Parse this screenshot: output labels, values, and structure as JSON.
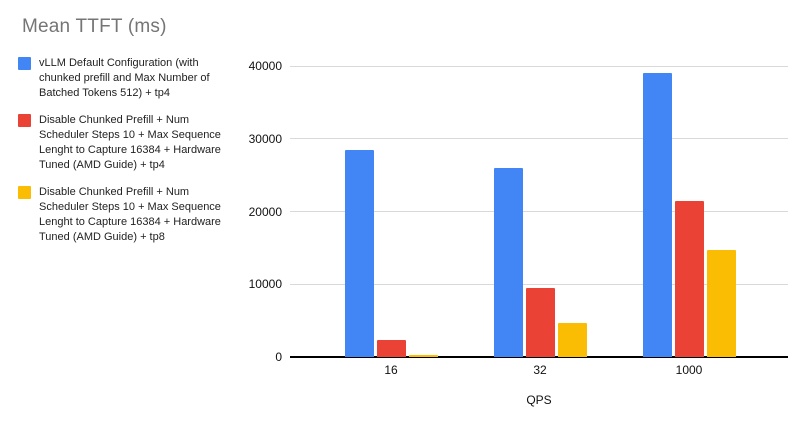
{
  "title": "Mean TTFT (ms)",
  "legend": {
    "items": [
      {
        "label": "vLLM Default Configuration (with chunked prefill and Max Number of Batched Tokens 512) + tp4",
        "color": "#4285F4"
      },
      {
        "label": "Disable Chunked Prefill + Num Scheduler Steps 10 + Max Sequence Lenght to Capture 16384 + Hardware Tuned (AMD Guide) + tp4",
        "color": "#EA4335"
      },
      {
        "label": "Disable Chunked Prefill + Num Scheduler Steps 10 + Max Sequence Lenght to Capture 16384 + Hardware Tuned (AMD Guide) + tp8",
        "color": "#FBBC04"
      }
    ]
  },
  "chart_data": {
    "type": "bar",
    "title": "Mean TTFT (ms)",
    "categories": [
      "16",
      "32",
      "1000"
    ],
    "series": [
      {
        "name": "vLLM Default Configuration (with chunked prefill and Max Number of Batched Tokens 512) + tp4",
        "color": "#4285F4",
        "values": [
          28500,
          26000,
          39000
        ]
      },
      {
        "name": "Disable Chunked Prefill + Num Scheduler Steps 10 + Max Sequence Lenght to Capture 16384 + Hardware Tuned (AMD Guide) + tp4",
        "color": "#EA4335",
        "values": [
          2300,
          9500,
          21500
        ]
      },
      {
        "name": "Disable Chunked Prefill + Num Scheduler Steps 10 + Max Sequence Lenght to Capture 16384 + Hardware Tuned (AMD Guide) + tp8",
        "color": "#FBBC04",
        "values": [
          250,
          4700,
          14700
        ]
      }
    ],
    "xlabel": "QPS",
    "ylabel": "",
    "ylim": [
      0,
      40000
    ],
    "yticks": [
      0,
      10000,
      20000,
      30000,
      40000
    ],
    "grid": true,
    "legend_position": "left"
  },
  "colors": {
    "background": "#ffffff",
    "gridline": "#d9d9d9",
    "axis_line": "#000000",
    "title_text": "#757575",
    "tick_text": "#111111"
  }
}
